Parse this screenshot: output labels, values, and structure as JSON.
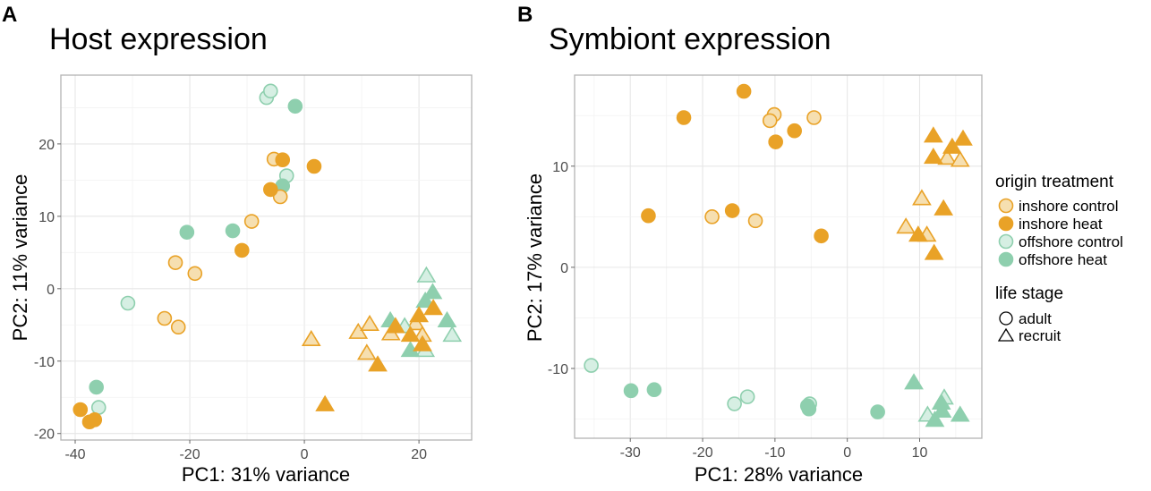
{
  "colors": {
    "inshore_line": "#E9A227",
    "inshore_control_fill": "#F6DFB0",
    "inshore_heat_fill": "#E9A227",
    "offshore_line": "#8ECFAE",
    "offshore_control_fill": "#D6EFE3",
    "offshore_heat_fill": "#8ECFAE"
  },
  "legend": {
    "treatment_title": "origin treatment",
    "treatments": [
      {
        "key": "inshore_control",
        "label": "inshore control"
      },
      {
        "key": "inshore_heat",
        "label": "inshore heat"
      },
      {
        "key": "offshore_control",
        "label": "offshore control"
      },
      {
        "key": "offshore_heat",
        "label": "offshore heat"
      }
    ],
    "stage_title": "life stage",
    "stages": [
      {
        "key": "adult",
        "label": "adult",
        "shape": "circle"
      },
      {
        "key": "recruit",
        "label": "recruit",
        "shape": "triangle"
      }
    ]
  },
  "chart_data": [
    {
      "type": "scatter",
      "panel": "A",
      "title": "Host expression",
      "xlabel": "PC1: 31% variance",
      "ylabel": "PC2: 11% variance",
      "xlim": [
        -42.5,
        29.2
      ],
      "ylim": [
        -20.9,
        29.5
      ],
      "xticks": [
        -40,
        -20,
        0,
        20
      ],
      "yticks": [
        -20,
        -10,
        0,
        10,
        20
      ],
      "grid": true,
      "points": [
        {
          "g": "offshore_control",
          "s": "adult",
          "x": -6.6,
          "y": 26.4
        },
        {
          "g": "offshore_control",
          "s": "adult",
          "x": -5.9,
          "y": 27.3
        },
        {
          "g": "offshore_control",
          "s": "adult",
          "x": -3.1,
          "y": 15.6
        },
        {
          "g": "offshore_control",
          "s": "adult",
          "x": -30.8,
          "y": -2.0
        },
        {
          "g": "offshore_control",
          "s": "adult",
          "x": -35.9,
          "y": -16.4
        },
        {
          "g": "offshore_heat",
          "s": "adult",
          "x": -1.6,
          "y": 25.2
        },
        {
          "g": "offshore_heat",
          "s": "adult",
          "x": -3.8,
          "y": 14.2
        },
        {
          "g": "offshore_heat",
          "s": "adult",
          "x": -12.5,
          "y": 8.0
        },
        {
          "g": "offshore_heat",
          "s": "adult",
          "x": -20.5,
          "y": 7.8
        },
        {
          "g": "offshore_heat",
          "s": "adult",
          "x": -36.3,
          "y": -13.6
        },
        {
          "g": "inshore_control",
          "s": "adult",
          "x": -5.3,
          "y": 17.9
        },
        {
          "g": "inshore_control",
          "s": "adult",
          "x": -4.2,
          "y": 12.7
        },
        {
          "g": "inshore_control",
          "s": "adult",
          "x": -9.2,
          "y": 9.3
        },
        {
          "g": "inshore_control",
          "s": "adult",
          "x": -22.5,
          "y": 3.6
        },
        {
          "g": "inshore_control",
          "s": "adult",
          "x": -19.1,
          "y": 2.1
        },
        {
          "g": "inshore_control",
          "s": "adult",
          "x": -24.4,
          "y": -4.1
        },
        {
          "g": "inshore_control",
          "s": "adult",
          "x": -22.0,
          "y": -5.3
        },
        {
          "g": "inshore_heat",
          "s": "adult",
          "x": -3.8,
          "y": 17.8
        },
        {
          "g": "inshore_heat",
          "s": "adult",
          "x": 1.7,
          "y": 16.9
        },
        {
          "g": "inshore_heat",
          "s": "adult",
          "x": -5.9,
          "y": 13.7
        },
        {
          "g": "inshore_heat",
          "s": "adult",
          "x": -10.9,
          "y": 5.3
        },
        {
          "g": "inshore_heat",
          "s": "adult",
          "x": -39.1,
          "y": -16.7
        },
        {
          "g": "inshore_heat",
          "s": "adult",
          "x": -37.5,
          "y": -18.4
        },
        {
          "g": "inshore_heat",
          "s": "adult",
          "x": -36.6,
          "y": -18.1
        },
        {
          "g": "inshore_control",
          "s": "recruit",
          "x": 1.2,
          "y": -7.0
        },
        {
          "g": "inshore_control",
          "s": "recruit",
          "x": 9.4,
          "y": -6.0
        },
        {
          "g": "inshore_control",
          "s": "recruit",
          "x": 11.4,
          "y": -4.9
        },
        {
          "g": "inshore_control",
          "s": "recruit",
          "x": 10.9,
          "y": -8.9
        },
        {
          "g": "inshore_control",
          "s": "recruit",
          "x": 15.1,
          "y": -6.2
        },
        {
          "g": "inshore_control",
          "s": "recruit",
          "x": 19.4,
          "y": -4.8
        },
        {
          "g": "inshore_control",
          "s": "recruit",
          "x": 20.6,
          "y": -6.4
        },
        {
          "g": "offshore_control",
          "s": "recruit",
          "x": 21.3,
          "y": 1.8
        },
        {
          "g": "offshore_control",
          "s": "recruit",
          "x": 17.5,
          "y": -5.2
        },
        {
          "g": "offshore_control",
          "s": "recruit",
          "x": 25.8,
          "y": -6.4
        },
        {
          "g": "offshore_control",
          "s": "recruit",
          "x": 21.1,
          "y": -8.5
        },
        {
          "g": "offshore_heat",
          "s": "recruit",
          "x": 15.0,
          "y": -4.4
        },
        {
          "g": "offshore_heat",
          "s": "recruit",
          "x": 22.4,
          "y": -0.5
        },
        {
          "g": "offshore_heat",
          "s": "recruit",
          "x": 21.1,
          "y": -1.7
        },
        {
          "g": "offshore_heat",
          "s": "recruit",
          "x": 24.9,
          "y": -4.4
        },
        {
          "g": "offshore_heat",
          "s": "recruit",
          "x": 18.5,
          "y": -8.5
        },
        {
          "g": "inshore_heat",
          "s": "recruit",
          "x": 3.6,
          "y": -16.0
        },
        {
          "g": "inshore_heat",
          "s": "recruit",
          "x": 12.8,
          "y": -10.5
        },
        {
          "g": "inshore_heat",
          "s": "recruit",
          "x": 15.9,
          "y": -5.2
        },
        {
          "g": "inshore_heat",
          "s": "recruit",
          "x": 18.5,
          "y": -6.4
        },
        {
          "g": "inshore_heat",
          "s": "recruit",
          "x": 20.0,
          "y": -3.7
        },
        {
          "g": "inshore_heat",
          "s": "recruit",
          "x": 22.5,
          "y": -2.7
        },
        {
          "g": "inshore_heat",
          "s": "recruit",
          "x": 20.6,
          "y": -7.7
        }
      ]
    },
    {
      "type": "scatter",
      "panel": "B",
      "title": "Symbiont expression",
      "xlabel": "PC1: 28% variance",
      "ylabel": "PC2: 17% variance",
      "xlim": [
        -37.7,
        18.6
      ],
      "ylim": [
        -16.9,
        19.0
      ],
      "xticks": [
        -30,
        -20,
        -10,
        0,
        10
      ],
      "yticks": [
        -10,
        0,
        10
      ],
      "grid": true,
      "points": [
        {
          "g": "inshore_heat",
          "s": "adult",
          "x": -14.3,
          "y": 17.4
        },
        {
          "g": "inshore_heat",
          "s": "adult",
          "x": -22.6,
          "y": 14.8
        },
        {
          "g": "inshore_heat",
          "s": "adult",
          "x": -7.3,
          "y": 13.5
        },
        {
          "g": "inshore_heat",
          "s": "adult",
          "x": -9.9,
          "y": 12.4
        },
        {
          "g": "inshore_heat",
          "s": "adult",
          "x": -27.5,
          "y": 5.1
        },
        {
          "g": "inshore_heat",
          "s": "adult",
          "x": -15.9,
          "y": 5.6
        },
        {
          "g": "inshore_heat",
          "s": "adult",
          "x": -3.6,
          "y": 3.1
        },
        {
          "g": "inshore_control",
          "s": "adult",
          "x": -10.1,
          "y": 15.1
        },
        {
          "g": "inshore_control",
          "s": "adult",
          "x": -10.7,
          "y": 14.5
        },
        {
          "g": "inshore_control",
          "s": "adult",
          "x": -4.6,
          "y": 14.8
        },
        {
          "g": "inshore_control",
          "s": "adult",
          "x": -18.7,
          "y": 5.0
        },
        {
          "g": "inshore_control",
          "s": "adult",
          "x": -12.7,
          "y": 4.6
        },
        {
          "g": "offshore_control",
          "s": "adult",
          "x": -35.4,
          "y": -9.7
        },
        {
          "g": "offshore_control",
          "s": "adult",
          "x": -15.6,
          "y": -13.5
        },
        {
          "g": "offshore_control",
          "s": "adult",
          "x": -13.8,
          "y": -12.8
        },
        {
          "g": "offshore_control",
          "s": "adult",
          "x": -5.2,
          "y": -13.5
        },
        {
          "g": "offshore_heat",
          "s": "adult",
          "x": -29.9,
          "y": -12.2
        },
        {
          "g": "offshore_heat",
          "s": "adult",
          "x": -26.7,
          "y": -12.1
        },
        {
          "g": "offshore_heat",
          "s": "adult",
          "x": -5.5,
          "y": -13.7
        },
        {
          "g": "offshore_heat",
          "s": "adult",
          "x": -5.3,
          "y": -14.0
        },
        {
          "g": "offshore_heat",
          "s": "adult",
          "x": 4.2,
          "y": -14.3
        },
        {
          "g": "inshore_control",
          "s": "recruit",
          "x": 13.8,
          "y": 10.8
        },
        {
          "g": "inshore_control",
          "s": "recruit",
          "x": 15.6,
          "y": 10.6
        },
        {
          "g": "inshore_control",
          "s": "recruit",
          "x": 10.3,
          "y": 6.8
        },
        {
          "g": "inshore_control",
          "s": "recruit",
          "x": 8.1,
          "y": 4.0
        },
        {
          "g": "inshore_control",
          "s": "recruit",
          "x": 11.0,
          "y": 3.2
        },
        {
          "g": "inshore_heat",
          "s": "recruit",
          "x": 11.9,
          "y": 13.0
        },
        {
          "g": "inshore_heat",
          "s": "recruit",
          "x": 16.0,
          "y": 12.7
        },
        {
          "g": "inshore_heat",
          "s": "recruit",
          "x": 14.5,
          "y": 11.9
        },
        {
          "g": "inshore_heat",
          "s": "recruit",
          "x": 11.9,
          "y": 10.9
        },
        {
          "g": "inshore_heat",
          "s": "recruit",
          "x": 13.3,
          "y": 5.8
        },
        {
          "g": "inshore_heat",
          "s": "recruit",
          "x": 9.8,
          "y": 3.2
        },
        {
          "g": "inshore_heat",
          "s": "recruit",
          "x": 12.0,
          "y": 1.4
        },
        {
          "g": "offshore_control",
          "s": "recruit",
          "x": 13.4,
          "y": -12.9
        },
        {
          "g": "offshore_control",
          "s": "recruit",
          "x": 11.1,
          "y": -14.6
        },
        {
          "g": "offshore_heat",
          "s": "recruit",
          "x": 9.2,
          "y": -11.4
        },
        {
          "g": "offshore_heat",
          "s": "recruit",
          "x": 13.0,
          "y": -13.4
        },
        {
          "g": "offshore_heat",
          "s": "recruit",
          "x": 15.6,
          "y": -14.6
        },
        {
          "g": "offshore_heat",
          "s": "recruit",
          "x": 12.1,
          "y": -15.1
        },
        {
          "g": "offshore_heat",
          "s": "recruit",
          "x": 13.1,
          "y": -14.2
        }
      ]
    }
  ]
}
